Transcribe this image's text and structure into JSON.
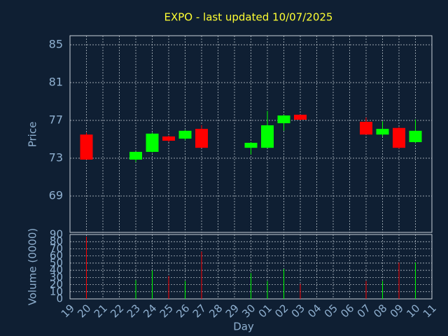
{
  "chart_data": [
    {
      "type": "candlestick",
      "title": "EXPO - last updated 10/07/2025",
      "ylabel": "Price",
      "open": [
        null,
        75.5,
        null,
        null,
        72.85,
        73.67,
        75.3,
        75.07,
        76.1,
        null,
        null,
        74.1,
        74.1,
        76.7,
        77.6,
        null,
        null,
        null,
        76.85,
        75.5,
        76.2,
        74.7,
        null
      ],
      "high": [
        null,
        75.7,
        null,
        null,
        73.7,
        75.7,
        75.4,
        76.0,
        76.5,
        null,
        null,
        74.7,
        78.0,
        77.6,
        77.6,
        null,
        null,
        null,
        77.3,
        76.9,
        76.3,
        77.1,
        null
      ],
      "low": [
        null,
        72.85,
        null,
        null,
        72.6,
        73.6,
        74.7,
        74.9,
        74.1,
        null,
        null,
        73.4,
        74.1,
        75.9,
        77.0,
        null,
        null,
        null,
        75.5,
        75.3,
        74.0,
        74.6,
        null
      ],
      "close": [
        null,
        72.85,
        null,
        null,
        73.67,
        75.6,
        74.85,
        75.9,
        74.1,
        null,
        null,
        74.63,
        76.48,
        77.52,
        77.07,
        null,
        null,
        null,
        75.5,
        76.1,
        74.1,
        75.9,
        null
      ],
      "ylim": [
        65.15,
        85.96
      ],
      "yticks": [
        69,
        73,
        77,
        81,
        85
      ],
      "up_color": "#00ff00",
      "down_color": "#ff0000",
      "grid": true
    },
    {
      "type": "bar",
      "ylabel": "Volume (0000)",
      "xlabel": "Day",
      "categories": [
        "19",
        "20",
        "21",
        "22",
        "23",
        "24",
        "25",
        "26",
        "27",
        "28",
        "29",
        "30",
        "01",
        "02",
        "03",
        "04",
        "05",
        "06",
        "07",
        "08",
        "09",
        "10",
        "11"
      ],
      "values": [
        null,
        87,
        null,
        null,
        26,
        40,
        32,
        25,
        66,
        null,
        null,
        36,
        25,
        42,
        21,
        null,
        null,
        null,
        25,
        25,
        51,
        51,
        null
      ],
      "ylim": [
        0,
        90
      ],
      "yticks": [
        0,
        10,
        20,
        30,
        40,
        50,
        60,
        70,
        80,
        90
      ],
      "grid": true
    }
  ]
}
